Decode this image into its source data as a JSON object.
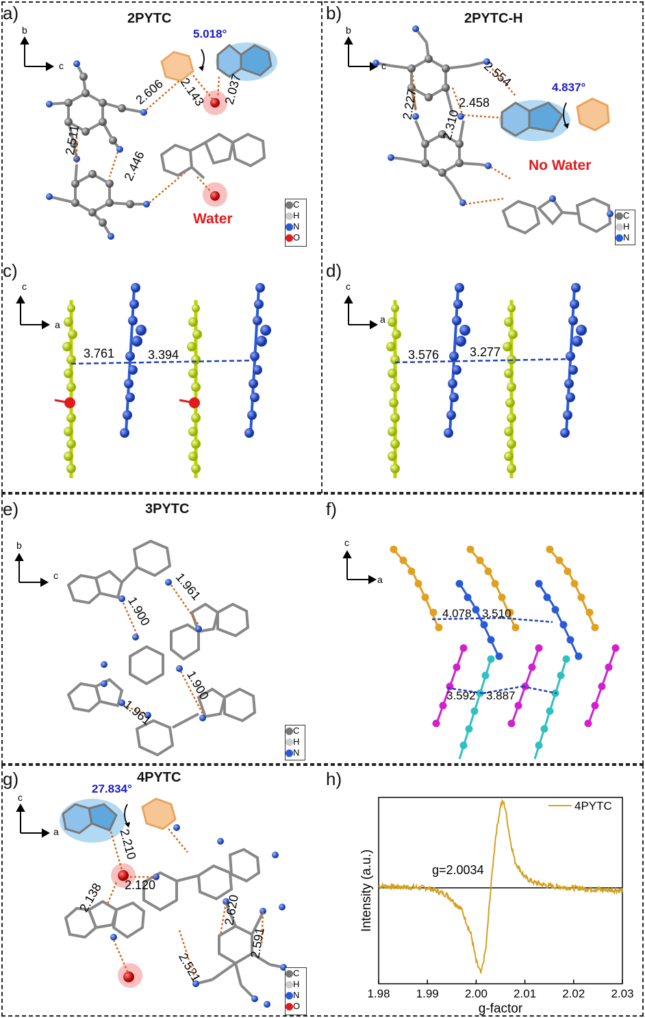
{
  "panels": {
    "a": {
      "label": "a)",
      "title": "2PYTC",
      "axes": [
        "b",
        "c"
      ],
      "angle": "5.018°",
      "distances": [
        "2.606",
        "2.143",
        "2.037",
        "2.511",
        "2.446"
      ],
      "annotation": "Water",
      "legend": [
        "C",
        "H",
        "N",
        "O"
      ]
    },
    "b": {
      "label": "b)",
      "title": "2PYTC-H",
      "axes": [
        "b",
        "c"
      ],
      "angle": "4.837°",
      "distances": [
        "2.554",
        "2.227",
        "2.458",
        "2.310"
      ],
      "annotation": "No Water",
      "legend": [
        "C",
        "H",
        "N"
      ]
    },
    "c": {
      "label": "c)",
      "axes": [
        "c",
        "a"
      ],
      "distances": [
        "3.761",
        "3.394"
      ]
    },
    "d": {
      "label": "d)",
      "axes": [
        "c",
        "a"
      ],
      "distances": [
        "3.576",
        "3.277"
      ]
    },
    "e": {
      "label": "e)",
      "title": "3PYTC",
      "axes": [
        "b",
        "c"
      ],
      "distances": [
        "1.961",
        "1.900",
        "1.900",
        "1.961"
      ],
      "legend": [
        "C",
        "H",
        "N"
      ]
    },
    "f": {
      "label": "f)",
      "axes": [
        "c",
        "a"
      ],
      "distances": [
        "4.078",
        "3.510",
        "3.592",
        "3.887"
      ]
    },
    "g": {
      "label": "g)",
      "title": "4PYTC",
      "axes": [
        "c",
        "a"
      ],
      "angle": "27.834°",
      "distances": [
        "2.210",
        "2.138",
        "2.120",
        "2.620",
        "2.591",
        "2.521"
      ],
      "legend": [
        "C",
        "H",
        "N",
        "O"
      ]
    },
    "h": {
      "label": "h)"
    }
  },
  "colors": {
    "carbon": "#7a7a7a",
    "hydrogen": "#d0d0d0",
    "nitrogen": "#2a5bd7",
    "oxygen": "#e31a1c",
    "hbond": "#d2691e",
    "pi_stack": "#1f3fbf",
    "yellow_layer": "#c8e600",
    "blue_layer": "#2a5bd7",
    "gold_layer": "#e0a020",
    "magenta_layer": "#d020d0",
    "cyan_layer": "#30c0c0",
    "epr_line": "#d4a020",
    "angle_text": "#1a1acc",
    "water_text": "#e31a1c"
  },
  "chart_data": {
    "type": "line",
    "title": "",
    "xlabel": "g-factor",
    "ylabel": "Intensity (a.u.)",
    "xlim": [
      1.98,
      2.03
    ],
    "xticks": [
      "1.98",
      "1.99",
      "2.00",
      "2.01",
      "2.02",
      "2.03"
    ],
    "annotation": "g=2.0034",
    "legend_position": "top-right",
    "series": [
      {
        "name": "4PYTC",
        "x": [
          1.98,
          1.985,
          1.99,
          1.994,
          1.997,
          1.999,
          2.0,
          2.001,
          2.002,
          2.003,
          2.004,
          2.005,
          2.0055,
          2.006,
          2.007,
          2.008,
          2.01,
          2.012,
          2.015,
          2.02,
          2.025,
          2.03
        ],
        "y": [
          0.02,
          0.01,
          0.0,
          -0.08,
          -0.25,
          -0.55,
          -0.85,
          -1.0,
          -0.7,
          0.0,
          0.6,
          0.95,
          1.0,
          0.92,
          0.55,
          0.3,
          0.12,
          0.06,
          0.02,
          0.0,
          -0.02,
          -0.03
        ]
      }
    ]
  }
}
